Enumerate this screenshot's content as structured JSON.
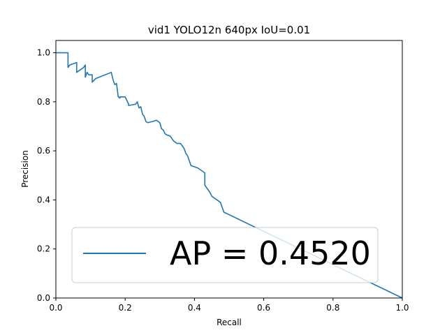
{
  "chart_data": {
    "type": "line",
    "title": "vid1 YOLO12n 640px IoU=0.01",
    "xlabel": "Recall",
    "ylabel": "Precision",
    "xlim": [
      0.0,
      1.0
    ],
    "ylim": [
      0.0,
      1.05
    ],
    "grid": false,
    "legend_position": "lower-left",
    "x_ticks": [
      "0.0",
      "0.2",
      "0.4",
      "0.6",
      "0.8",
      "1.0"
    ],
    "y_ticks": [
      "0.0",
      "0.2",
      "0.4",
      "0.6",
      "0.8",
      "1.0"
    ],
    "series": [
      {
        "name": "AP = 0.4520",
        "color": "#1f77b4",
        "x": [
          0.0,
          0.035,
          0.035,
          0.04,
          0.06,
          0.06,
          0.08,
          0.085,
          0.085,
          0.09,
          0.095,
          0.105,
          0.105,
          0.115,
          0.16,
          0.165,
          0.17,
          0.175,
          0.18,
          0.185,
          0.185,
          0.2,
          0.21,
          0.21,
          0.23,
          0.235,
          0.24,
          0.245,
          0.25,
          0.255,
          0.26,
          0.265,
          0.28,
          0.29,
          0.295,
          0.3,
          0.305,
          0.31,
          0.315,
          0.32,
          0.33,
          0.34,
          0.35,
          0.36,
          0.365,
          0.37,
          0.375,
          0.38,
          0.385,
          0.39,
          0.4,
          0.41,
          0.42,
          0.43,
          0.43,
          0.435,
          0.44,
          0.445,
          0.45,
          0.46,
          0.47,
          0.475,
          0.48,
          0.485,
          1.0
        ],
        "y": [
          1.0,
          1.0,
          0.94,
          0.95,
          0.96,
          0.92,
          0.94,
          0.95,
          0.9,
          0.92,
          0.91,
          0.91,
          0.88,
          0.895,
          0.92,
          0.89,
          0.87,
          0.875,
          0.82,
          0.815,
          0.82,
          0.82,
          0.79,
          0.785,
          0.79,
          0.8,
          0.775,
          0.78,
          0.75,
          0.74,
          0.72,
          0.715,
          0.72,
          0.725,
          0.72,
          0.715,
          0.69,
          0.685,
          0.67,
          0.665,
          0.66,
          0.64,
          0.63,
          0.63,
          0.62,
          0.61,
          0.59,
          0.58,
          0.56,
          0.54,
          0.535,
          0.53,
          0.52,
          0.51,
          0.46,
          0.45,
          0.44,
          0.43,
          0.415,
          0.405,
          0.395,
          0.39,
          0.37,
          0.35,
          0.0
        ]
      }
    ]
  }
}
